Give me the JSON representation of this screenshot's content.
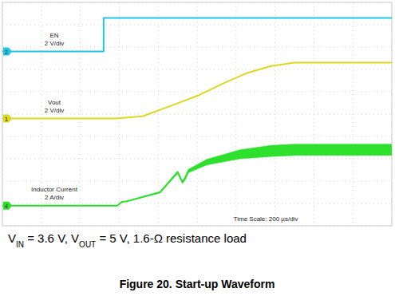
{
  "chart_data": {
    "type": "line",
    "title": "Figure 20. Start-up Waveform",
    "caption": [
      "V",
      "IN",
      " = 3.6 V, V",
      "OUT",
      " = 5 V, 1.6-Ω resistance load"
    ],
    "time_label": "Time Scale: 200 µs/div",
    "xlim": [
      0,
      2000
    ],
    "xticks": [
      0,
      200,
      400,
      600,
      800,
      1000,
      1200,
      1400,
      1600,
      1800,
      2000
    ],
    "ylim": [
      0,
      10
    ],
    "yticks": [
      0,
      1,
      2,
      3,
      4,
      5,
      6,
      7,
      8,
      9,
      10
    ],
    "grid": true,
    "tick_labels": false,
    "series": [
      {
        "name": "EN",
        "channel": "2",
        "scale_label": "2 V/div",
        "per_div": 2,
        "ground": 7.8,
        "color": "#1fc8e6",
        "x": [
          0,
          520,
          520,
          2000
        ],
        "values": [
          0,
          0,
          3.0,
          3.0
        ]
      },
      {
        "name": "Vout",
        "channel": "1",
        "scale_label": "2 V/div",
        "per_div": 2,
        "ground": 4.8,
        "color": "#dcd820",
        "x": [
          0,
          580,
          720,
          890,
          1010,
          1140,
          1260,
          1380,
          1500,
          2000
        ],
        "values": [
          0,
          0,
          0.2,
          1.3,
          2.1,
          3.2,
          4.1,
          4.7,
          5.0,
          5.0
        ]
      },
      {
        "name": "Inductor Current",
        "channel": "4",
        "scale_label": "2 A/div",
        "per_div": 2,
        "ground": 0.9,
        "color": "#2ee02e",
        "x": [
          0,
          590,
          615,
          640,
          810,
          900,
          925,
          940,
          955,
          1050,
          1220,
          1380,
          1500,
          2000
        ],
        "values": [
          0,
          0,
          0.35,
          0.4,
          1.2,
          3.0,
          2.1,
          2.5,
          3.1,
          3.9,
          4.6,
          4.9,
          5.0,
          5.0
        ],
        "ripple": [
          0,
          0,
          0,
          0,
          0.1,
          0.2,
          0.2,
          0.3,
          0.3,
          0.5,
          0.8,
          1.0,
          1.0,
          1.0
        ]
      }
    ]
  }
}
